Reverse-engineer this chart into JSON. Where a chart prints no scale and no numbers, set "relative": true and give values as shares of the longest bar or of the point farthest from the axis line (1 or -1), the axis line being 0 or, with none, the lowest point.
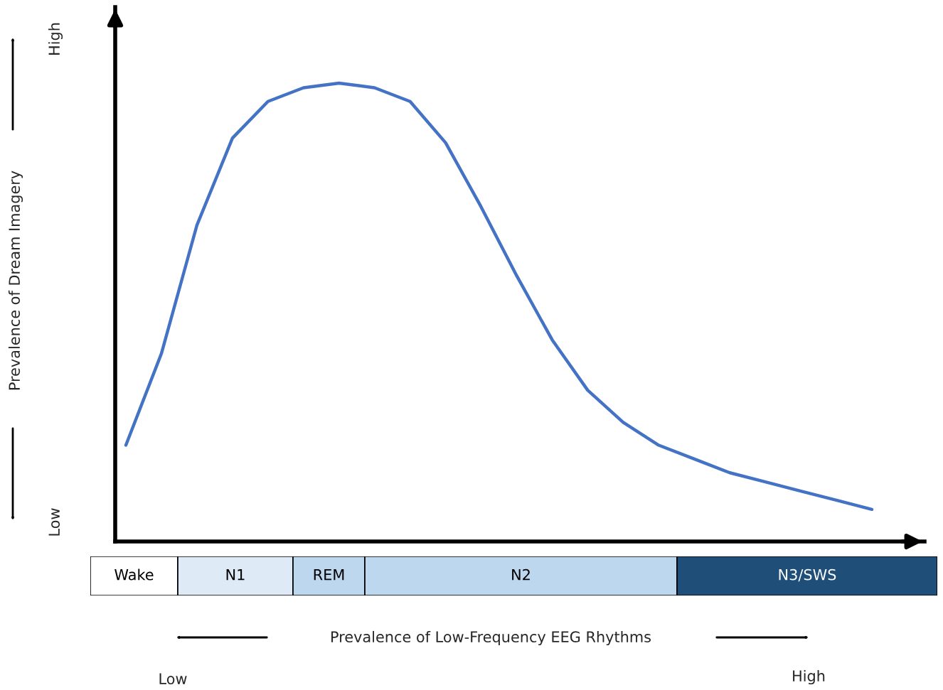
{
  "chart_data": {
    "type": "line",
    "relative": true,
    "categories": [
      null,
      null,
      null,
      null,
      null,
      null,
      null,
      null,
      null,
      null,
      null,
      null,
      null,
      null,
      null,
      null,
      null,
      null,
      null,
      null,
      null,
      null
    ],
    "series": [
      {
        "color": "#4472c4",
        "values": [
          0.21,
          0.41,
          0.69,
          0.88,
          0.96,
          0.99,
          1.0,
          0.99,
          0.96,
          0.87,
          0.73,
          0.58,
          0.44,
          0.33,
          0.26,
          0.21,
          0.18,
          0.15,
          0.13,
          0.11,
          0.09,
          0.07
        ]
      }
    ],
    "annotations": [
      "Prevalence of Dream Imagery",
      "Prevalence of Low-Frequency EEG Rhythms",
      "High",
      "Low",
      "Low",
      "High",
      "Wake",
      "N1",
      "REM",
      "N2",
      "N3/SWS"
    ],
    "grid": false,
    "legend": false,
    "marker": "none",
    "line_style": "solid"
  }
}
